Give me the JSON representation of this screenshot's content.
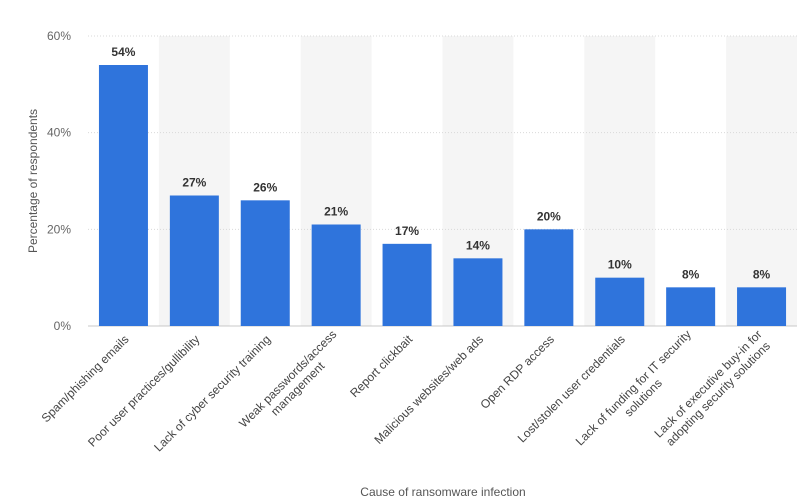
{
  "chart_data": {
    "type": "bar",
    "title": "",
    "xlabel": "Cause of ransomware infection",
    "ylabel": "Percentage of respondents",
    "ylim": [
      0,
      60
    ],
    "yticks": [
      "0%",
      "20%",
      "40%",
      "60%"
    ],
    "categories": [
      [
        "Spam/phishing emails"
      ],
      [
        "Poor user practices/gullibility"
      ],
      [
        "Lack of cyber security training"
      ],
      [
        "Weak passwords/access",
        "management"
      ],
      [
        "Report clickbait"
      ],
      [
        "Malicious websites/web ads"
      ],
      [
        "Open RDP access"
      ],
      [
        "Lost/stolen user credentials"
      ],
      [
        "Lack of funding for IT security",
        "solutions"
      ],
      [
        "Lack of executive buy-in for",
        "adopting security solutions"
      ]
    ],
    "values": [
      54,
      27,
      26,
      21,
      17,
      14,
      20,
      10,
      8,
      8
    ],
    "data_labels": [
      "54%",
      "27%",
      "26%",
      "21%",
      "17%",
      "14%",
      "20%",
      "10%",
      "8%",
      "8%"
    ],
    "grid": true,
    "colors": {
      "bar": "#2f74dc",
      "band": "#f5f5f5",
      "grid": "#d9d9d9"
    }
  }
}
